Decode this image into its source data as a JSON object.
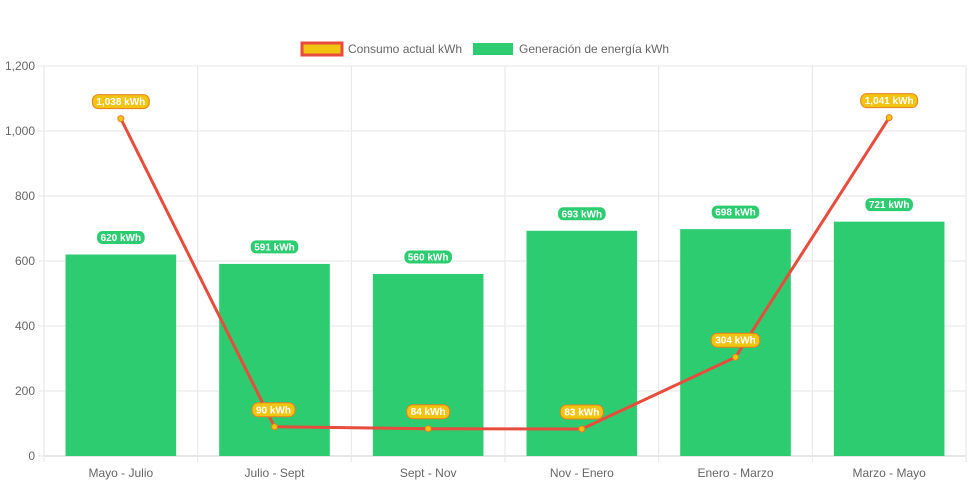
{
  "chart_data": {
    "type": "bar",
    "categories": [
      "Mayo - Julio",
      "Julio - Sept",
      "Sept - Nov",
      "Nov - Enero",
      "Enero - Marzo",
      "Marzo - Mayo"
    ],
    "series": [
      {
        "name": "Generación de energía kWh",
        "type": "bar",
        "values": [
          620,
          591,
          560,
          693,
          698,
          721
        ],
        "labels": [
          "620 kWh",
          "591 kWh",
          "560 kWh",
          "693 kWh",
          "698 kWh",
          "721 kWh"
        ],
        "color": "#2ecc71"
      },
      {
        "name": "Consumo actual kWh",
        "type": "line",
        "values": [
          1038,
          90,
          84,
          83,
          304,
          1041
        ],
        "labels": [
          "1,038 kWh",
          "90 kWh",
          "84 kWh",
          "83 kWh",
          "304 kWh",
          "1,041 kWh"
        ],
        "color": "#e74c3c",
        "point_color": "#f1c40f"
      }
    ],
    "ylim": [
      0,
      1200
    ],
    "yticks": [
      0,
      200,
      400,
      600,
      800,
      1000,
      1200
    ],
    "ytick_labels": [
      "0",
      "200",
      "400",
      "600",
      "800",
      "1,000",
      "1,200"
    ],
    "grid": true,
    "legend_position": "top"
  },
  "legend": {
    "line_label": "Consumo actual kWh",
    "bar_label": "Generación de energía kWh"
  }
}
